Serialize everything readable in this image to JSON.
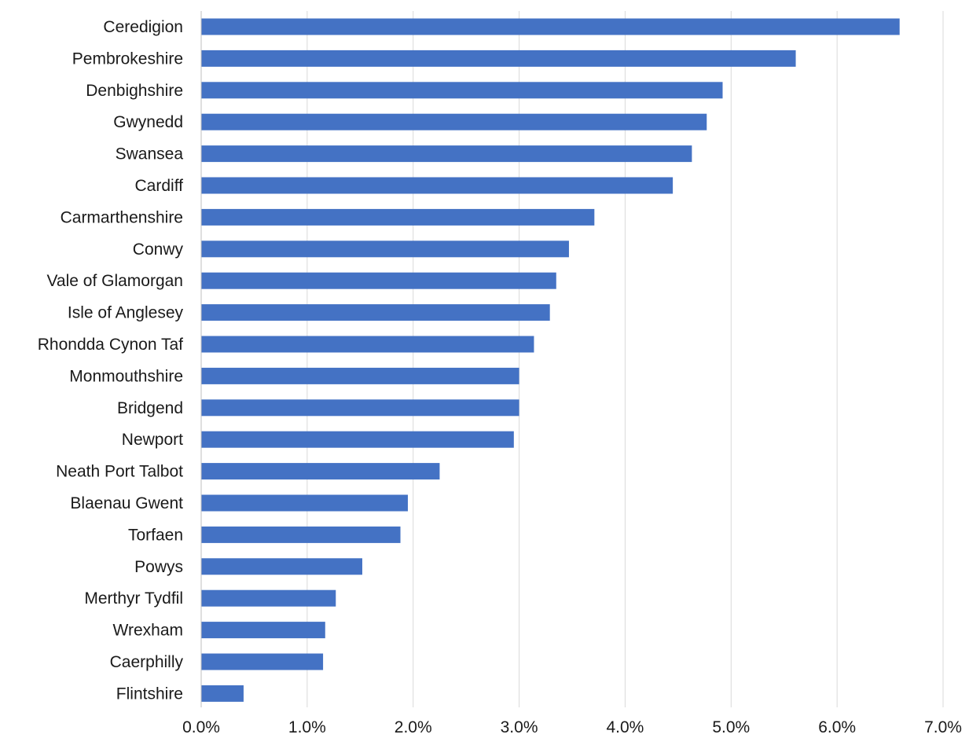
{
  "chart_data": {
    "type": "bar",
    "orientation": "horizontal",
    "title": "",
    "xlabel": "",
    "ylabel": "",
    "categories": [
      "Ceredigion",
      "Pembrokeshire",
      "Denbighshire",
      "Gwynedd",
      "Swansea",
      "Cardiff",
      "Carmarthenshire",
      "Conwy",
      "Vale of Glamorgan",
      "Isle of Anglesey",
      "Rhondda Cynon Taf",
      "Monmouthshire",
      "Bridgend",
      "Newport",
      "Neath Port Talbot",
      "Blaenau Gwent",
      "Torfaen",
      "Powys",
      "Merthyr Tydfil",
      "Wrexham",
      "Caerphilly",
      "Flintshire"
    ],
    "values": [
      6.59,
      5.61,
      4.92,
      4.77,
      4.63,
      4.45,
      3.71,
      3.47,
      3.35,
      3.29,
      3.14,
      3.0,
      3.0,
      2.95,
      2.25,
      1.95,
      1.88,
      1.52,
      1.27,
      1.17,
      1.15,
      0.4
    ],
    "value_unit": "%",
    "xlim": [
      0,
      7
    ],
    "x_ticks": [
      0,
      1,
      2,
      3,
      4,
      5,
      6,
      7
    ],
    "x_tick_labels": [
      "0.0%",
      "1.0%",
      "2.0%",
      "3.0%",
      "4.0%",
      "5.0%",
      "6.0%",
      "7.0%"
    ],
    "grid": "vertical",
    "legend": "none",
    "bar_color": "#4472C4"
  }
}
